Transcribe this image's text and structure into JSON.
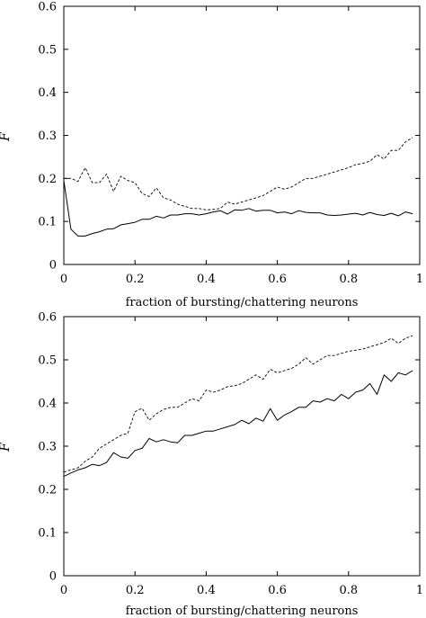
{
  "chart_data": [
    {
      "type": "line",
      "xlabel": "fraction of bursting/chattering neurons",
      "ylabel": "F",
      "xlim": [
        0,
        1
      ],
      "ylim": [
        0,
        0.6
      ],
      "xticks": [
        "0",
        "0.2",
        "0.4",
        "0.6",
        "0.8",
        "1"
      ],
      "yticks": [
        "0",
        "0.1",
        "0.2",
        "0.3",
        "0.4",
        "0.5",
        "0.6"
      ],
      "x": [
        0.0,
        0.02,
        0.04,
        0.06,
        0.08,
        0.1,
        0.12,
        0.14,
        0.16,
        0.18,
        0.2,
        0.22,
        0.24,
        0.26,
        0.28,
        0.3,
        0.32,
        0.34,
        0.36,
        0.38,
        0.4,
        0.42,
        0.44,
        0.46,
        0.48,
        0.5,
        0.52,
        0.54,
        0.56,
        0.58,
        0.6,
        0.62,
        0.64,
        0.66,
        0.68,
        0.7,
        0.72,
        0.74,
        0.76,
        0.78,
        0.8,
        0.82,
        0.84,
        0.86,
        0.88,
        0.9,
        0.92,
        0.94,
        0.96,
        0.98
      ],
      "series": [
        {
          "style": "solid",
          "values": [
            0.195,
            0.082,
            0.066,
            0.066,
            0.072,
            0.076,
            0.082,
            0.083,
            0.092,
            0.095,
            0.098,
            0.105,
            0.105,
            0.112,
            0.108,
            0.115,
            0.115,
            0.118,
            0.118,
            0.115,
            0.118,
            0.122,
            0.125,
            0.117,
            0.127,
            0.126,
            0.13,
            0.124,
            0.126,
            0.126,
            0.12,
            0.122,
            0.118,
            0.125,
            0.121,
            0.12,
            0.12,
            0.115,
            0.114,
            0.115,
            0.117,
            0.119,
            0.115,
            0.121,
            0.116,
            0.114,
            0.119,
            0.113,
            0.122,
            0.118
          ]
        },
        {
          "style": "dashed",
          "values": [
            0.2,
            0.2,
            0.193,
            0.225,
            0.19,
            0.19,
            0.21,
            0.17,
            0.205,
            0.195,
            0.19,
            0.165,
            0.158,
            0.178,
            0.155,
            0.15,
            0.14,
            0.135,
            0.13,
            0.13,
            0.127,
            0.128,
            0.13,
            0.145,
            0.14,
            0.145,
            0.15,
            0.155,
            0.16,
            0.17,
            0.18,
            0.175,
            0.18,
            0.19,
            0.2,
            0.2,
            0.205,
            0.21,
            0.215,
            0.22,
            0.225,
            0.232,
            0.235,
            0.24,
            0.255,
            0.245,
            0.265,
            0.265,
            0.285,
            0.295
          ]
        }
      ]
    },
    {
      "type": "line",
      "xlabel": "fraction of bursting/chattering neurons",
      "ylabel": "F",
      "xlim": [
        0,
        1
      ],
      "ylim": [
        0,
        0.6
      ],
      "xticks": [
        "0",
        "0.2",
        "0.4",
        "0.6",
        "0.8",
        "1"
      ],
      "yticks": [
        "0",
        "0.1",
        "0.2",
        "0.3",
        "0.4",
        "0.5",
        "0.6"
      ],
      "x": [
        0.0,
        0.02,
        0.04,
        0.06,
        0.08,
        0.1,
        0.12,
        0.14,
        0.16,
        0.18,
        0.2,
        0.22,
        0.24,
        0.26,
        0.28,
        0.3,
        0.32,
        0.34,
        0.36,
        0.38,
        0.4,
        0.42,
        0.44,
        0.46,
        0.48,
        0.5,
        0.52,
        0.54,
        0.56,
        0.58,
        0.6,
        0.62,
        0.64,
        0.66,
        0.68,
        0.7,
        0.72,
        0.74,
        0.76,
        0.78,
        0.8,
        0.82,
        0.84,
        0.86,
        0.88,
        0.9,
        0.92,
        0.94,
        0.96,
        0.98
      ],
      "series": [
        {
          "style": "solid",
          "values": [
            0.23,
            0.238,
            0.245,
            0.25,
            0.258,
            0.255,
            0.262,
            0.285,
            0.275,
            0.272,
            0.29,
            0.295,
            0.318,
            0.31,
            0.315,
            0.31,
            0.308,
            0.325,
            0.325,
            0.33,
            0.335,
            0.335,
            0.34,
            0.345,
            0.35,
            0.36,
            0.352,
            0.365,
            0.358,
            0.387,
            0.36,
            0.372,
            0.38,
            0.39,
            0.39,
            0.405,
            0.402,
            0.41,
            0.405,
            0.42,
            0.41,
            0.425,
            0.43,
            0.445,
            0.42,
            0.465,
            0.45,
            0.47,
            0.465,
            0.475
          ]
        },
        {
          "style": "dashed",
          "values": [
            0.24,
            0.245,
            0.25,
            0.265,
            0.275,
            0.295,
            0.305,
            0.315,
            0.325,
            0.33,
            0.38,
            0.388,
            0.36,
            0.375,
            0.385,
            0.39,
            0.39,
            0.4,
            0.41,
            0.405,
            0.43,
            0.425,
            0.43,
            0.438,
            0.44,
            0.445,
            0.455,
            0.465,
            0.455,
            0.478,
            0.47,
            0.475,
            0.48,
            0.49,
            0.505,
            0.49,
            0.5,
            0.51,
            0.51,
            0.515,
            0.52,
            0.522,
            0.525,
            0.53,
            0.535,
            0.54,
            0.55,
            0.538,
            0.55,
            0.556
          ]
        }
      ]
    }
  ]
}
